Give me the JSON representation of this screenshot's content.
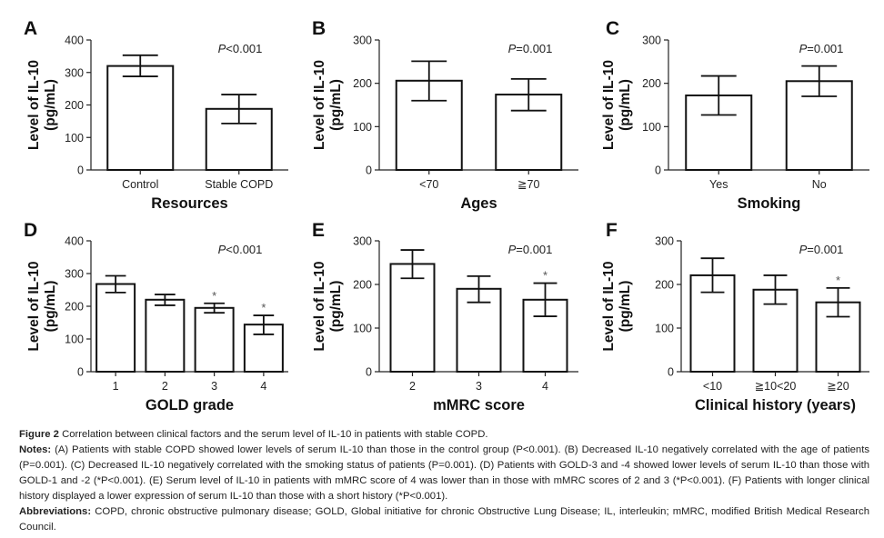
{
  "chart_data": [
    {
      "type": "bar",
      "panel": "A",
      "categories": [
        "Control",
        "Stable COPD"
      ],
      "values": [
        320,
        188
      ],
      "error_low": [
        288,
        143
      ],
      "error_high": [
        353,
        232
      ],
      "stars": [
        false,
        false
      ],
      "annotation": "P<0.001",
      "annotation_italic": "P",
      "annotation_rest": "<0.001",
      "xlabel": "Resources",
      "ylabel": [
        "Level of IL-10",
        "(pg/mL)"
      ],
      "ylim": [
        0,
        400
      ],
      "yticks": [
        0,
        100,
        200,
        300,
        400
      ]
    },
    {
      "type": "bar",
      "panel": "B",
      "categories": [
        "<70",
        "≧70"
      ],
      "values": [
        206,
        174
      ],
      "error_low": [
        160,
        137
      ],
      "error_high": [
        251,
        210
      ],
      "stars": [
        false,
        false
      ],
      "annotation": "P=0.001",
      "annotation_italic": "P",
      "annotation_rest": "=0.001",
      "xlabel": "Ages",
      "ylabel": [
        "Level of IL-10",
        "(pg/mL)"
      ],
      "ylim": [
        0,
        300
      ],
      "yticks": [
        0,
        100,
        200,
        300
      ]
    },
    {
      "type": "bar",
      "panel": "C",
      "categories": [
        "Yes",
        "No"
      ],
      "values": [
        172,
        205
      ],
      "error_low": [
        127,
        170
      ],
      "error_high": [
        217,
        240
      ],
      "stars": [
        false,
        false
      ],
      "annotation": "P=0.001",
      "annotation_italic": "P",
      "annotation_rest": "=0.001",
      "xlabel": "Smoking",
      "ylabel": [
        "Level of IL-10",
        "(pg/mL)"
      ],
      "ylim": [
        0,
        300
      ],
      "yticks": [
        0,
        100,
        200,
        300
      ]
    },
    {
      "type": "bar",
      "panel": "D",
      "categories": [
        "1",
        "2",
        "3",
        "4"
      ],
      "values": [
        268,
        220,
        195,
        144
      ],
      "error_low": [
        242,
        203,
        180,
        114
      ],
      "error_high": [
        293,
        236,
        209,
        172
      ],
      "stars": [
        false,
        false,
        true,
        true
      ],
      "annotation": "P<0.001",
      "annotation_italic": "P",
      "annotation_rest": "<0.001",
      "xlabel": "GOLD grade",
      "ylabel": [
        "Level of IL-10",
        "(pg/mL)"
      ],
      "ylim": [
        0,
        400
      ],
      "yticks": [
        0,
        100,
        200,
        300,
        400
      ]
    },
    {
      "type": "bar",
      "panel": "E",
      "categories": [
        "2",
        "3",
        "4"
      ],
      "values": [
        247,
        190,
        165
      ],
      "error_low": [
        214,
        159,
        127
      ],
      "error_high": [
        279,
        219,
        203
      ],
      "stars": [
        false,
        false,
        true
      ],
      "annotation": "P=0.001",
      "annotation_italic": "P",
      "annotation_rest": "=0.001",
      "xlabel": "mMRC score",
      "ylabel": [
        "Level of IL-10",
        "(pg/mL)"
      ],
      "ylim": [
        0,
        300
      ],
      "yticks": [
        0,
        100,
        200,
        300
      ]
    },
    {
      "type": "bar",
      "panel": "F",
      "categories": [
        "<10",
        "≧10<20",
        "≧20"
      ],
      "values": [
        221,
        188,
        159
      ],
      "error_low": [
        182,
        155,
        126
      ],
      "error_high": [
        260,
        221,
        192
      ],
      "stars": [
        false,
        false,
        true
      ],
      "annotation": "P=0.001",
      "annotation_italic": "P",
      "annotation_rest": "=0.001",
      "xlabel": "Clinical history (years)",
      "ylabel": [
        "Level of IL-10",
        "(pg/mL)"
      ],
      "ylim": [
        0,
        300
      ],
      "yticks": [
        0,
        100,
        200,
        300
      ]
    }
  ],
  "caption": {
    "figure_label": "Figure 2",
    "figure_title": " Correlation between clinical factors and the serum level of IL-10 in patients with stable COPD.",
    "notes_label": "Notes:",
    "notes_text": " (A) Patients with stable COPD showed lower levels of serum IL-10 than those in the control group (P<0.001). (B) Decreased IL-10 negatively correlated with the age of patients (P=0.001). (C) Decreased IL-10 negatively correlated with the smoking status of patients (P=0.001). (D) Patients with GOLD-3 and -4 showed lower levels of serum IL-10 than those with GOLD-1 and -2 (*P<0.001). (E) Serum level of IL-10 in patients with mMRC score of 4 was lower than in those with mMRC scores of 2 and 3 (*P<0.001). (F) Patients with longer clinical history displayed a lower expression of serum IL-10 than those with a short history (*P<0.001).",
    "abbreviations_label": "Abbreviations:",
    "abbreviations_text": " COPD, chronic obstructive pulmonary disease; GOLD, Global initiative for chronic Obstructive Lung Disease; IL, interleukin; mMRC, modified British Medical Research Council."
  }
}
